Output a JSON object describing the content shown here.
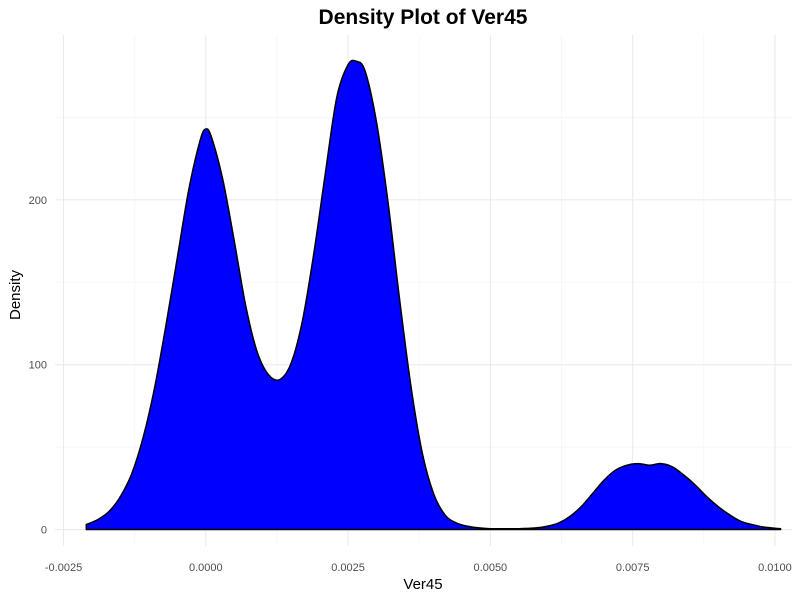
{
  "chart_data": {
    "type": "area",
    "title": "Density Plot of Ver45",
    "xlabel": "Ver45",
    "ylabel": "Density",
    "xlim": [
      -0.00265,
      0.0103
    ],
    "ylim": [
      -10,
      300
    ],
    "xticks": [
      -0.0025,
      0.0,
      0.0025,
      0.005,
      0.0075,
      0.01
    ],
    "xtick_labels": [
      "-0.0025",
      "0.0000",
      "0.0025",
      "0.0050",
      "0.0075",
      "0.0100"
    ],
    "yticks": [
      0,
      100,
      200
    ],
    "ytick_labels": [
      "0",
      "100",
      "200"
    ],
    "grid": true,
    "fill_color": "#0000ff",
    "line_color": "#000000",
    "x": [
      -0.0021,
      -0.0019,
      -0.0017,
      -0.0015,
      -0.0013,
      -0.0011,
      -0.0009,
      -0.0007,
      -0.0005,
      -0.0003,
      -0.0001,
      0.0,
      0.0001,
      0.0003,
      0.0005,
      0.0007,
      0.0009,
      0.0011,
      0.0013,
      0.0015,
      0.0017,
      0.0019,
      0.0021,
      0.0023,
      0.0025,
      0.00265,
      0.0028,
      0.003,
      0.0032,
      0.0034,
      0.0036,
      0.0038,
      0.004,
      0.0042,
      0.0044,
      0.0046,
      0.0048,
      0.005,
      0.0052,
      0.0055,
      0.0058,
      0.006,
      0.0062,
      0.0064,
      0.0066,
      0.0068,
      0.007,
      0.0072,
      0.0074,
      0.0076,
      0.0078,
      0.008,
      0.0082,
      0.0084,
      0.0086,
      0.0088,
      0.009,
      0.0092,
      0.0094,
      0.0096,
      0.0098,
      0.01,
      0.0101
    ],
    "y": [
      3,
      6,
      11,
      20,
      34,
      56,
      86,
      124,
      165,
      206,
      236,
      243,
      238,
      212,
      175,
      136,
      108,
      94,
      91,
      101,
      127,
      168,
      216,
      262,
      282,
      284,
      278,
      247,
      199,
      141,
      88,
      47,
      22,
      9,
      4,
      2,
      1,
      0.5,
      0.5,
      0.5,
      1,
      2,
      4,
      8,
      14,
      22,
      30,
      36,
      39,
      40,
      39,
      40,
      38,
      33,
      27,
      20,
      14,
      9,
      5,
      3,
      1.5,
      0.8,
      0.5
    ]
  }
}
